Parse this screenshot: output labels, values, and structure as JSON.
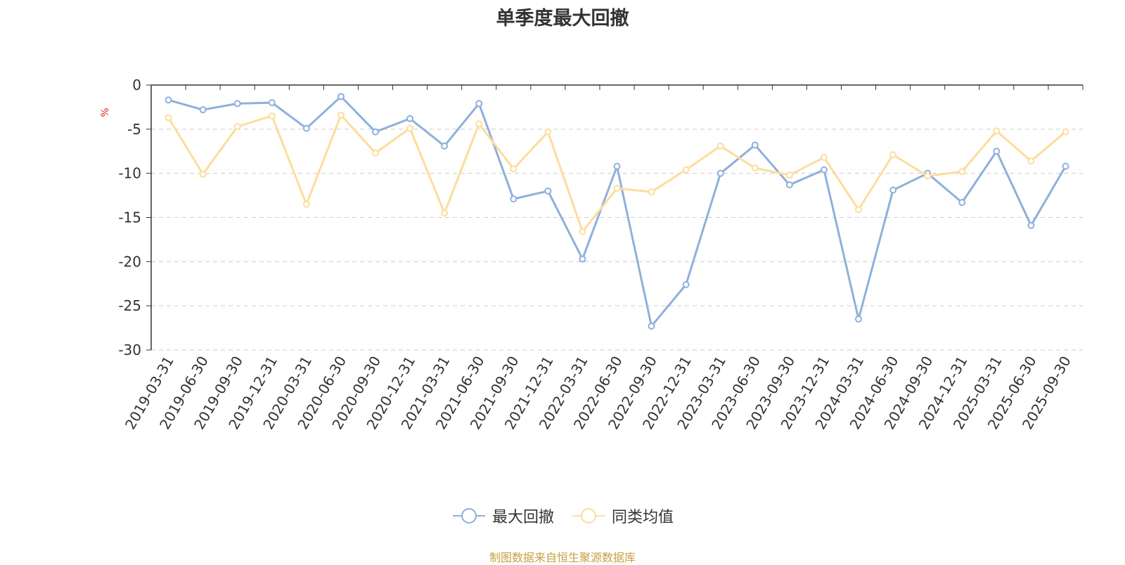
{
  "chart_data": {
    "type": "line",
    "title": "单季度最大回撤",
    "ylabel": "%",
    "ylim": [
      -30,
      0
    ],
    "yticks": [
      0,
      -5,
      -10,
      -15,
      -20,
      -25,
      -30
    ],
    "grid": true,
    "legend_position": "bottom-center",
    "categories": [
      "2019-03-31",
      "2019-06-30",
      "2019-09-30",
      "2019-12-31",
      "2020-03-31",
      "2020-06-30",
      "2020-09-30",
      "2020-12-31",
      "2021-03-31",
      "2021-06-30",
      "2021-09-30",
      "2021-12-31",
      "2022-03-31",
      "2022-06-30",
      "2022-09-30",
      "2022-12-31",
      "2023-03-31",
      "2023-06-30",
      "2023-09-30",
      "2023-12-31",
      "2024-03-31",
      "2024-06-30",
      "2024-09-30",
      "2024-12-31",
      "2025-03-31",
      "2025-06-30",
      "2025-09-30"
    ],
    "series": [
      {
        "name": "最大回撤",
        "color": "#8fb0dc",
        "values": [
          -1.7,
          -2.8,
          -2.1,
          -2.0,
          -4.9,
          -1.3,
          -5.3,
          -3.8,
          -6.9,
          -2.1,
          -12.9,
          -12.0,
          -19.7,
          -9.2,
          -27.3,
          -22.6,
          -10.0,
          -6.8,
          -11.3,
          -9.6,
          -26.5,
          -11.9,
          -10.0,
          -13.3,
          -7.5,
          -15.9,
          -9.2
        ]
      },
      {
        "name": "同类均值",
        "color": "#fddd9c",
        "values": [
          -3.7,
          -10.1,
          -4.7,
          -3.5,
          -13.5,
          -3.4,
          -7.7,
          -4.9,
          -14.5,
          -4.4,
          -9.5,
          -5.3,
          -16.6,
          -11.7,
          -12.1,
          -9.6,
          -6.9,
          -9.4,
          -10.2,
          -8.2,
          -14.1,
          -7.9,
          -10.3,
          -9.8,
          -5.2,
          -8.6,
          -5.3
        ]
      }
    ]
  },
  "source_note": "制图数据来自恒生聚源数据库"
}
